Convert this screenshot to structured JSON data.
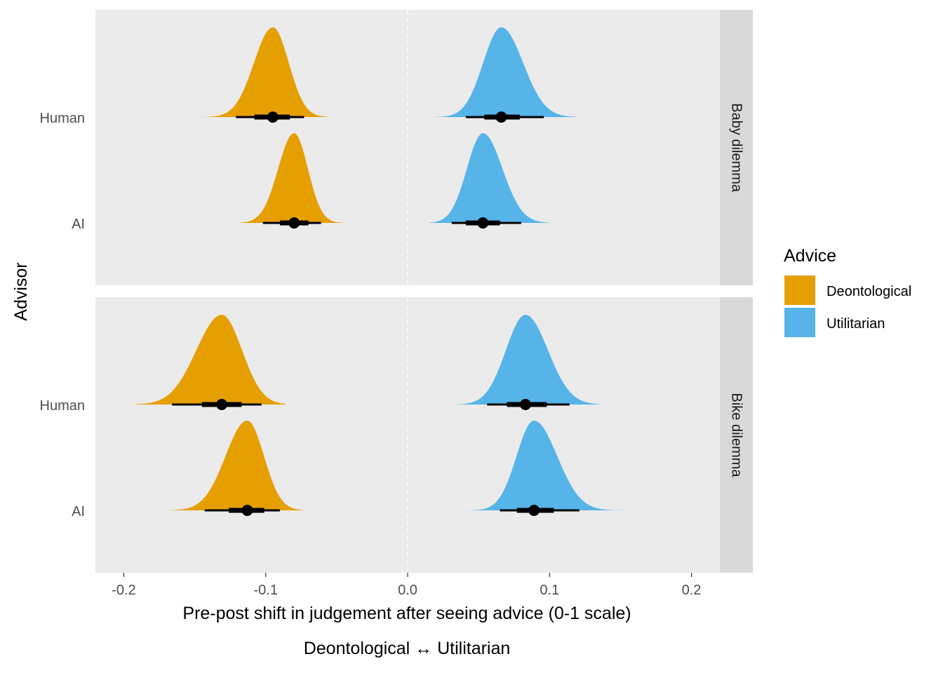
{
  "chart_data": {
    "type": "halfeye",
    "xlabel_line1": "Pre-post shift in judgement after seeing advice (0-1 scale)",
    "xlabel_line2": "Deontological ↔ Utilitarian",
    "ylabel": "Advisor",
    "xlim": [
      -0.22,
      0.22
    ],
    "x_ticks": [
      -0.2,
      -0.1,
      0.0,
      0.1,
      0.2
    ],
    "x_tick_labels": [
      "-0.2",
      "-0.1",
      "0.0",
      "0.1",
      "0.2"
    ],
    "y_categories": [
      "Human",
      "AI"
    ],
    "reference_line": 0.0,
    "legend": {
      "title": "Advice",
      "position": "right",
      "entries": [
        {
          "label": "Deontological",
          "color": "#E69F00"
        },
        {
          "label": "Utilitarian",
          "color": "#56B4E9"
        }
      ]
    },
    "colors": {
      "Deontological": "#E69F00",
      "Utilitarian": "#56B4E9",
      "panel_bg": "#EBEBEB",
      "strip_bg": "#D9D9D9",
      "interval": "#000000"
    },
    "panels": [
      {
        "strip": "Baby dilemma",
        "groups": [
          {
            "advisor": "Human",
            "advice": "Deontological",
            "median": -0.095,
            "q66": [
              -0.108,
              -0.083
            ],
            "q95": [
              -0.121,
              -0.073
            ],
            "range": [
              -0.153,
              -0.055
            ],
            "sd": 0.0115
          },
          {
            "advisor": "Human",
            "advice": "Utilitarian",
            "median": 0.066,
            "q66": [
              0.054,
              0.079
            ],
            "q95": [
              0.041,
              0.096
            ],
            "range": [
              0.014,
              0.119
            ],
            "sd": 0.0135
          },
          {
            "advisor": "AI",
            "advice": "Deontological",
            "median": -0.08,
            "q66": [
              -0.09,
              -0.07
            ],
            "q95": [
              -0.102,
              -0.061
            ],
            "range": [
              -0.118,
              -0.044
            ],
            "sd": 0.0095
          },
          {
            "advisor": "AI",
            "advice": "Utilitarian",
            "median": 0.053,
            "q66": [
              0.041,
              0.065
            ],
            "q95": [
              0.031,
              0.08
            ],
            "range": [
              0.015,
              0.1
            ],
            "sd": 0.0125
          }
        ]
      },
      {
        "strip": "Bike dilemma",
        "groups": [
          {
            "advisor": "Human",
            "advice": "Deontological",
            "median": -0.131,
            "q66": [
              -0.145,
              -0.117
            ],
            "q95": [
              -0.166,
              -0.103
            ],
            "range": [
              -0.192,
              -0.086
            ],
            "sd": 0.0155
          },
          {
            "advisor": "Human",
            "advice": "Utilitarian",
            "median": 0.083,
            "q66": [
              0.07,
              0.098
            ],
            "q95": [
              0.056,
              0.114
            ],
            "range": [
              0.035,
              0.135
            ],
            "sd": 0.0145
          },
          {
            "advisor": "AI",
            "advice": "Deontological",
            "median": -0.113,
            "q66": [
              -0.126,
              -0.101
            ],
            "q95": [
              -0.143,
              -0.09
            ],
            "range": [
              -0.172,
              -0.073
            ],
            "sd": 0.013
          },
          {
            "advisor": "AI",
            "advice": "Utilitarian",
            "median": 0.089,
            "q66": [
              0.077,
              0.103
            ],
            "q95": [
              0.065,
              0.121
            ],
            "range": [
              0.04,
              0.153
            ],
            "sd": 0.014
          }
        ]
      }
    ]
  }
}
